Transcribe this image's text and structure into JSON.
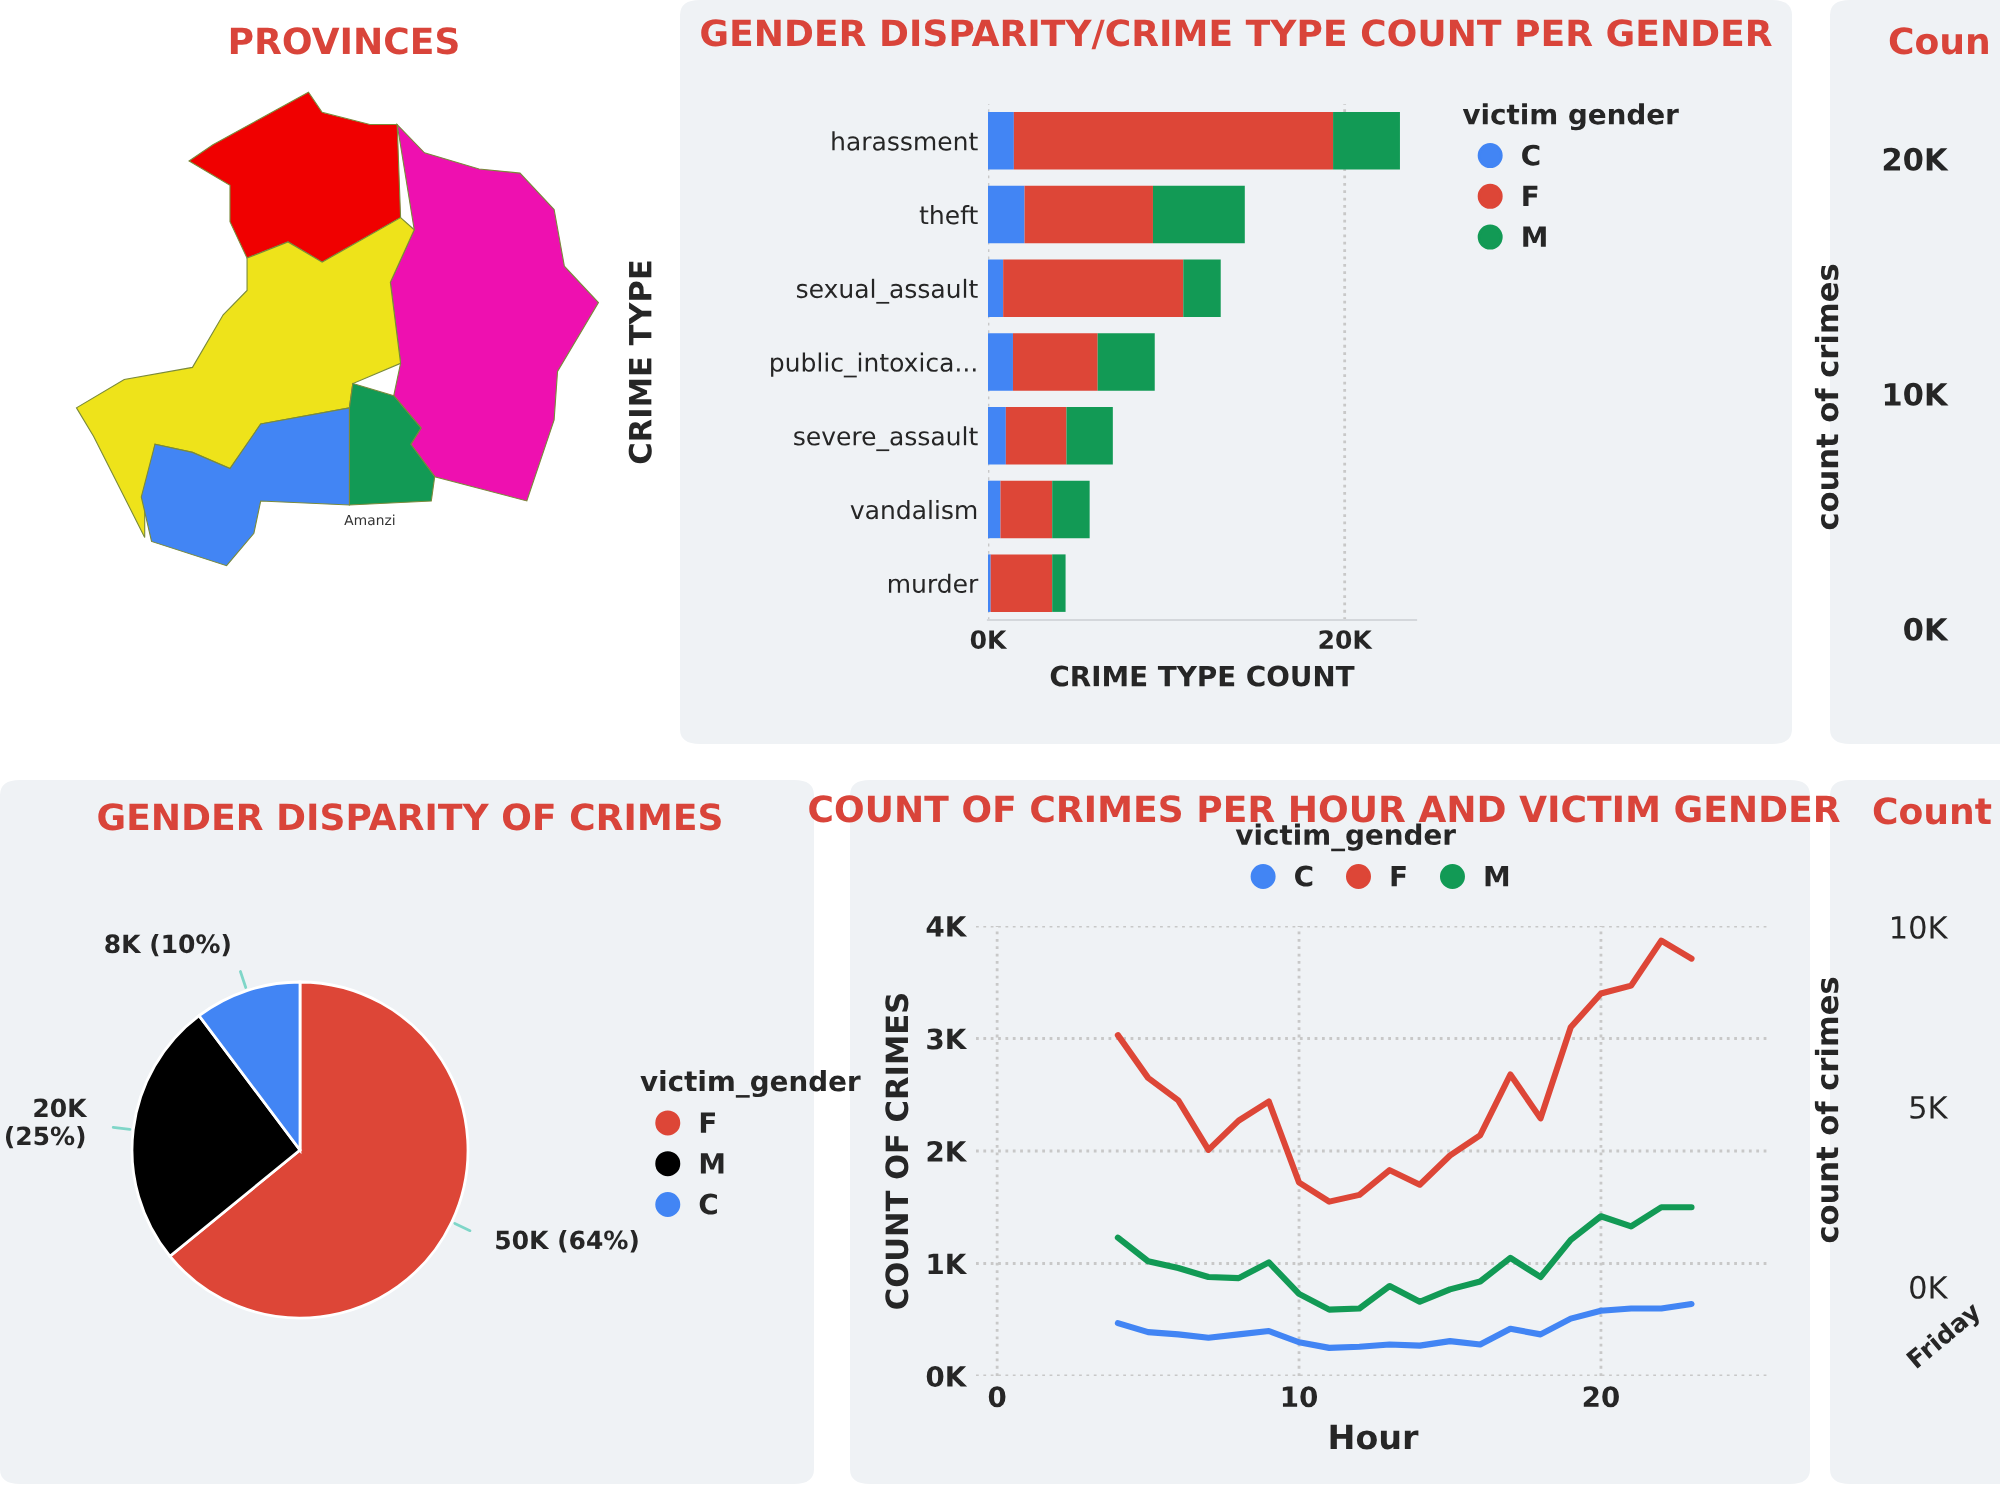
{
  "chart_data": [
    {
      "type": "other",
      "title": "PROVINCES",
      "annotations": [
        "Amanzi"
      ]
    },
    {
      "type": "bar",
      "orientation": "horizontal",
      "stacked": true,
      "title": "GENDER DISPARITY/CRIME TYPE COUNT PER GENDER",
      "xlabel": "CRIME TYPE COUNT",
      "ylabel": "CRIME TYPE",
      "legend_title": "victim gender",
      "legend": "right",
      "grid": "x",
      "categories": [
        "harassment",
        "theft",
        "sexual_assault",
        "public_intoxica...",
        "severe_assault",
        "vandalism",
        "murder"
      ],
      "xlim": [
        0,
        24000
      ],
      "xticks": [
        {
          "value": 0,
          "label": "0K"
        },
        {
          "value": 20000,
          "label": "20K"
        }
      ],
      "series": [
        {
          "name": "C",
          "color": "#4285f4",
          "values": [
            1450,
            2050,
            850,
            1400,
            1000,
            700,
            150
          ]
        },
        {
          "name": "F",
          "color": "#dd4637",
          "values": [
            17900,
            7200,
            10100,
            4750,
            3400,
            2900,
            3450
          ]
        },
        {
          "name": "M",
          "color": "#129a55",
          "values": [
            3750,
            5150,
            2100,
            3200,
            2600,
            2100,
            750
          ]
        }
      ]
    },
    {
      "type": "other",
      "title": "Coun",
      "ylabel": "count of crimes",
      "annotations": [
        "20K",
        "10K",
        "0K"
      ]
    },
    {
      "type": "pie",
      "title": "GENDER DISPARITY OF CRIMES",
      "legend_title": "victim_gender",
      "legend": "right",
      "categories": [
        "F",
        "M",
        "C"
      ],
      "values": [
        50000,
        20000,
        8000
      ],
      "colors": [
        "#dd4637",
        "#000000",
        "#4285f4"
      ],
      "value_labels": [
        "50K (64%)",
        "20K\n(25%)",
        "8K (10%)"
      ]
    },
    {
      "type": "line",
      "title": "COUNT OF CRIMES PER HOUR AND VICTIM GENDER",
      "xlabel": "Hour",
      "ylabel": "COUNT OF CRIMES",
      "legend_title": "victim_gender",
      "legend": "top",
      "grid": true,
      "marker": "none",
      "line_style": "solid",
      "x": [
        4,
        5,
        6,
        7,
        8,
        9,
        10,
        11,
        12,
        13,
        14,
        15,
        16,
        17,
        18,
        19,
        20,
        21,
        22,
        23
      ],
      "xlim": [
        -0.7,
        25.6
      ],
      "xticks": [
        0,
        10,
        20
      ],
      "ylim": [
        0,
        4000
      ],
      "yticks": [
        {
          "value": 0,
          "label": "0K"
        },
        {
          "value": 1000,
          "label": "1K"
        },
        {
          "value": 2000,
          "label": "2K"
        },
        {
          "value": 3000,
          "label": "3K"
        },
        {
          "value": 4000,
          "label": "4K"
        }
      ],
      "series": [
        {
          "name": "C",
          "color": "#4285f4",
          "values": [
            470,
            390,
            370,
            340,
            370,
            400,
            300,
            250,
            260,
            280,
            270,
            310,
            280,
            420,
            370,
            510,
            580,
            600,
            600,
            640
          ]
        },
        {
          "name": "F",
          "color": "#dd4637",
          "values": [
            3030,
            2650,
            2450,
            2010,
            2270,
            2440,
            1720,
            1550,
            1610,
            1830,
            1700,
            1960,
            2140,
            2680,
            2290,
            3100,
            3400,
            3470,
            3870,
            3710
          ]
        },
        {
          "name": "M",
          "color": "#129a55",
          "values": [
            1230,
            1020,
            960,
            880,
            870,
            1010,
            730,
            590,
            600,
            800,
            660,
            770,
            840,
            1050,
            880,
            1210,
            1420,
            1330,
            1500,
            1500
          ]
        }
      ]
    },
    {
      "type": "other",
      "title": "Count",
      "ylabel": "count of crimes",
      "categories": [
        "Friday"
      ],
      "annotations": [
        "10K",
        "5K",
        "0K"
      ]
    }
  ]
}
